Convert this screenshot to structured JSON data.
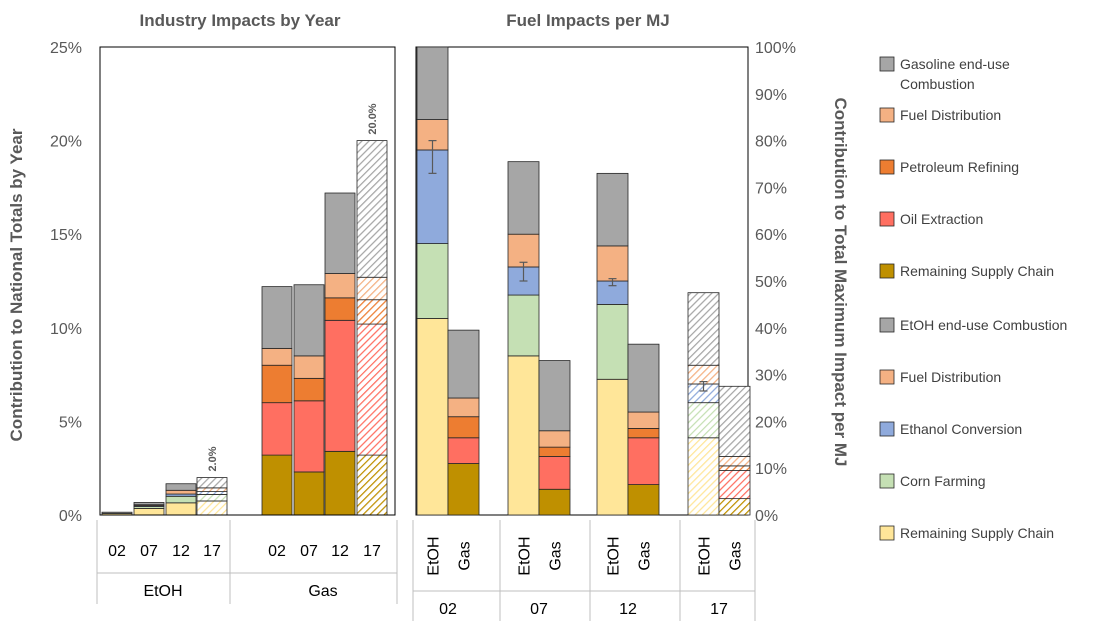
{
  "colors": {
    "gasoline_combustion": "#a6a6a6",
    "fuel_distribution": "#f4b183",
    "petroleum_refining": "#ed7d31",
    "oil_extraction": "#ff6f61",
    "remaining_supply_chain_gas": "#bf9000",
    "etoh_combustion": "#a6a6a6",
    "ethanol_conversion": "#8faadc",
    "corn_farming": "#c5e0b4",
    "remaining_supply_chain_etoh": "#ffe699",
    "axis": "#bfbfbf",
    "text": "#595959"
  },
  "legend": [
    {
      "label_lines": [
        "Gasoline end-use",
        "Combustion"
      ],
      "color_key": "gasoline_combustion"
    },
    {
      "label_lines": [
        "Fuel Distribution"
      ],
      "color_key": "fuel_distribution"
    },
    {
      "label_lines": [
        "Petroleum Refining"
      ],
      "color_key": "petroleum_refining"
    },
    {
      "label_lines": [
        "Oil Extraction"
      ],
      "color_key": "oil_extraction"
    },
    {
      "label_lines": [
        "Remaining Supply Chain"
      ],
      "color_key": "remaining_supply_chain_gas"
    },
    {
      "label_lines": [
        "EtOH end-use Combustion"
      ],
      "color_key": "etoh_combustion"
    },
    {
      "label_lines": [
        "Fuel Distribution"
      ],
      "color_key": "fuel_distribution"
    },
    {
      "label_lines": [
        "Ethanol Conversion"
      ],
      "color_key": "ethanol_conversion"
    },
    {
      "label_lines": [
        "Corn Farming"
      ],
      "color_key": "corn_farming"
    },
    {
      "label_lines": [
        "Remaining Supply Chain"
      ],
      "color_key": "remaining_supply_chain_etoh"
    }
  ],
  "chart_data": [
    {
      "type": "bar",
      "stacked": true,
      "title": "Industry Impacts by Year",
      "ylabel": "Contribution to National Totals by Year",
      "ylim": [
        0,
        25
      ],
      "yticks": [
        "0%",
        "5%",
        "10%",
        "15%",
        "20%",
        "25%"
      ],
      "groups": [
        "EtOH",
        "Gas"
      ],
      "categories": [
        "02",
        "07",
        "12",
        "17"
      ],
      "note": "2017 bars are hatched",
      "bars": [
        {
          "group": "EtOH",
          "year": "02",
          "stack": [
            {
              "c": "remaining_supply_chain_etoh",
              "v": 0.08
            },
            {
              "c": "etoh_combustion",
              "v": 0.07
            }
          ]
        },
        {
          "group": "EtOH",
          "year": "07",
          "stack": [
            {
              "c": "remaining_supply_chain_etoh",
              "v": 0.35
            },
            {
              "c": "corn_farming",
              "v": 0.1
            },
            {
              "c": "ethanol_conversion",
              "v": 0.05
            },
            {
              "c": "fuel_distribution",
              "v": 0.05
            },
            {
              "c": "etoh_combustion",
              "v": 0.12
            }
          ]
        },
        {
          "group": "EtOH",
          "year": "12",
          "stack": [
            {
              "c": "remaining_supply_chain_etoh",
              "v": 0.65
            },
            {
              "c": "corn_farming",
              "v": 0.35
            },
            {
              "c": "ethanol_conversion",
              "v": 0.12
            },
            {
              "c": "fuel_distribution",
              "v": 0.2
            },
            {
              "c": "etoh_combustion",
              "v": 0.35
            }
          ]
        },
        {
          "group": "EtOH",
          "year": "17",
          "hatched": true,
          "label": "2.0%",
          "stack": [
            {
              "c": "remaining_supply_chain_etoh",
              "v": 0.75
            },
            {
              "c": "corn_farming",
              "v": 0.35
            },
            {
              "c": "ethanol_conversion",
              "v": 0.15
            },
            {
              "c": "fuel_distribution",
              "v": 0.2
            },
            {
              "c": "etoh_combustion",
              "v": 0.55
            }
          ]
        },
        {
          "group": "Gas",
          "year": "02",
          "stack": [
            {
              "c": "remaining_supply_chain_gas",
              "v": 3.2
            },
            {
              "c": "oil_extraction",
              "v": 2.8
            },
            {
              "c": "petroleum_refining",
              "v": 2.0
            },
            {
              "c": "fuel_distribution",
              "v": 0.9
            },
            {
              "c": "gasoline_combustion",
              "v": 3.3
            }
          ]
        },
        {
          "group": "Gas",
          "year": "07",
          "stack": [
            {
              "c": "remaining_supply_chain_gas",
              "v": 2.3
            },
            {
              "c": "oil_extraction",
              "v": 3.8
            },
            {
              "c": "petroleum_refining",
              "v": 1.2
            },
            {
              "c": "fuel_distribution",
              "v": 1.2
            },
            {
              "c": "gasoline_combustion",
              "v": 3.8
            }
          ]
        },
        {
          "group": "Gas",
          "year": "12",
          "stack": [
            {
              "c": "remaining_supply_chain_gas",
              "v": 3.4
            },
            {
              "c": "oil_extraction",
              "v": 7.0
            },
            {
              "c": "petroleum_refining",
              "v": 1.2
            },
            {
              "c": "fuel_distribution",
              "v": 1.3
            },
            {
              "c": "gasoline_combustion",
              "v": 4.3
            }
          ]
        },
        {
          "group": "Gas",
          "year": "17",
          "hatched": true,
          "label": "20.0%",
          "stack": [
            {
              "c": "remaining_supply_chain_gas",
              "v": 3.2
            },
            {
              "c": "oil_extraction",
              "v": 7.0
            },
            {
              "c": "petroleum_refining",
              "v": 1.3
            },
            {
              "c": "fuel_distribution",
              "v": 1.2
            },
            {
              "c": "gasoline_combustion",
              "v": 7.3
            }
          ]
        }
      ]
    },
    {
      "type": "bar",
      "stacked": true,
      "title": "Fuel Impacts per MJ",
      "ylabel": "Contribution to Total Maximum Impact per MJ",
      "ylim": [
        0,
        100
      ],
      "yticks": [
        "0%",
        "10%",
        "20%",
        "30%",
        "40%",
        "50%",
        "60%",
        "70%",
        "80%",
        "90%",
        "100%"
      ],
      "groups": [
        "02",
        "07",
        "12",
        "17"
      ],
      "categories": [
        "EtOH",
        "Gas"
      ],
      "note": "2017 bars are hatched",
      "bars": [
        {
          "group": "02",
          "fuel": "EtOH",
          "error": [
            73,
            80
          ],
          "stack": [
            {
              "c": "remaining_supply_chain_etoh",
              "v": 42
            },
            {
              "c": "corn_farming",
              "v": 16
            },
            {
              "c": "ethanol_conversion",
              "v": 20
            },
            {
              "c": "fuel_distribution",
              "v": 6.5
            },
            {
              "c": "etoh_combustion",
              "v": 15.5
            }
          ]
        },
        {
          "group": "02",
          "fuel": "Gas",
          "stack": [
            {
              "c": "remaining_supply_chain_gas",
              "v": 11
            },
            {
              "c": "oil_extraction",
              "v": 5.5
            },
            {
              "c": "petroleum_refining",
              "v": 4.5
            },
            {
              "c": "fuel_distribution",
              "v": 4
            },
            {
              "c": "gasoline_combustion",
              "v": 14.5
            }
          ]
        },
        {
          "group": "07",
          "fuel": "EtOH",
          "error": [
            50,
            54
          ],
          "stack": [
            {
              "c": "remaining_supply_chain_etoh",
              "v": 34
            },
            {
              "c": "corn_farming",
              "v": 13
            },
            {
              "c": "ethanol_conversion",
              "v": 6
            },
            {
              "c": "fuel_distribution",
              "v": 7
            },
            {
              "c": "etoh_combustion",
              "v": 15.5
            }
          ]
        },
        {
          "group": "07",
          "fuel": "Gas",
          "stack": [
            {
              "c": "remaining_supply_chain_gas",
              "v": 5.5
            },
            {
              "c": "oil_extraction",
              "v": 7
            },
            {
              "c": "petroleum_refining",
              "v": 2
            },
            {
              "c": "fuel_distribution",
              "v": 3.5
            },
            {
              "c": "gasoline_combustion",
              "v": 15
            }
          ]
        },
        {
          "group": "12",
          "fuel": "EtOH",
          "error": [
            49,
            50.5
          ],
          "stack": [
            {
              "c": "remaining_supply_chain_etoh",
              "v": 29
            },
            {
              "c": "corn_farming",
              "v": 16
            },
            {
              "c": "ethanol_conversion",
              "v": 5
            },
            {
              "c": "fuel_distribution",
              "v": 7.5
            },
            {
              "c": "etoh_combustion",
              "v": 15.5
            }
          ]
        },
        {
          "group": "12",
          "fuel": "Gas",
          "stack": [
            {
              "c": "remaining_supply_chain_gas",
              "v": 6.5
            },
            {
              "c": "oil_extraction",
              "v": 10
            },
            {
              "c": "petroleum_refining",
              "v": 2
            },
            {
              "c": "fuel_distribution",
              "v": 3.5
            },
            {
              "c": "gasoline_combustion",
              "v": 14.5
            }
          ]
        },
        {
          "group": "17",
          "fuel": "EtOH",
          "hatched": true,
          "error": [
            26.5,
            28.5
          ],
          "stack": [
            {
              "c": "remaining_supply_chain_etoh",
              "v": 16.5
            },
            {
              "c": "corn_farming",
              "v": 7.5
            },
            {
              "c": "ethanol_conversion",
              "v": 4
            },
            {
              "c": "fuel_distribution",
              "v": 4
            },
            {
              "c": "etoh_combustion",
              "v": 15.5
            }
          ]
        },
        {
          "group": "17",
          "fuel": "Gas",
          "hatched": true,
          "stack": [
            {
              "c": "remaining_supply_chain_gas",
              "v": 3.5
            },
            {
              "c": "oil_extraction",
              "v": 6
            },
            {
              "c": "petroleum_refining",
              "v": 1
            },
            {
              "c": "fuel_distribution",
              "v": 2
            },
            {
              "c": "gasoline_combustion",
              "v": 15
            }
          ]
        }
      ]
    }
  ]
}
